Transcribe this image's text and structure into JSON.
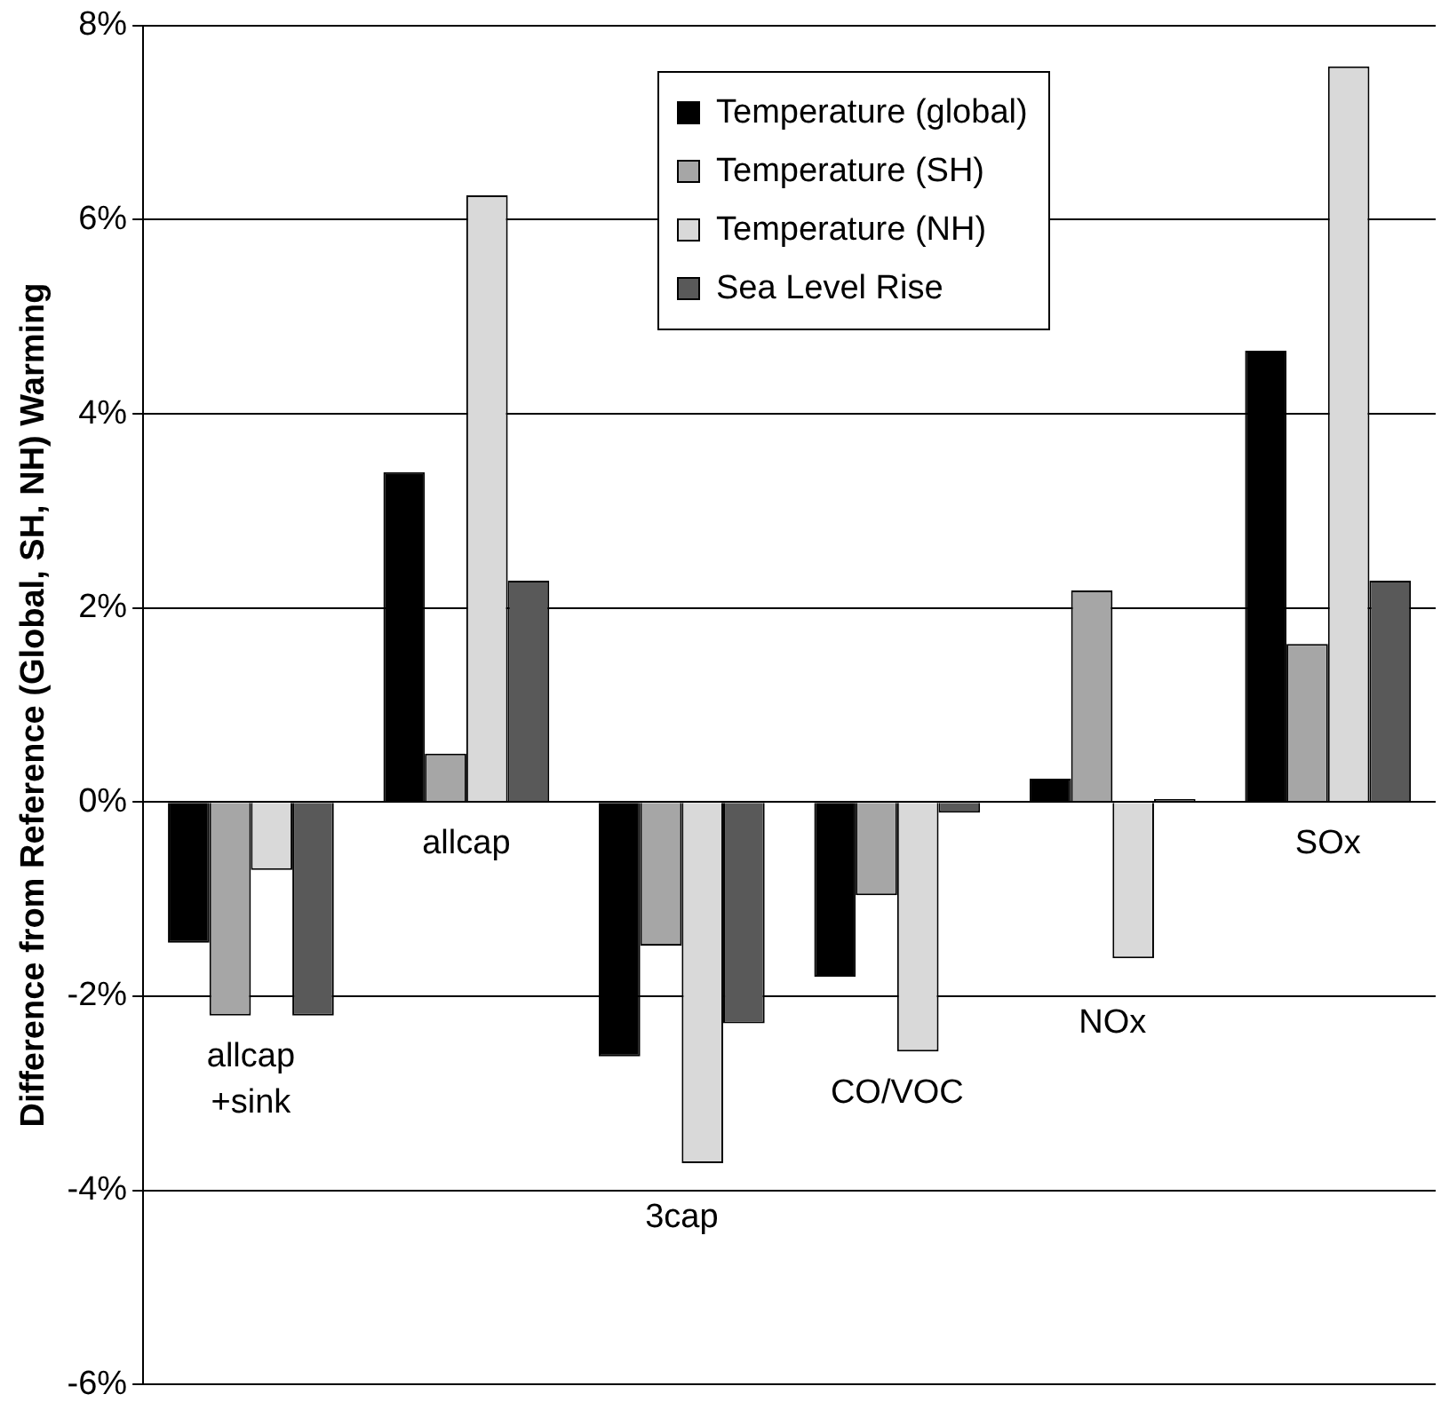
{
  "chart_data": {
    "type": "bar",
    "ylabel": "Difference from Reference (Global, SH, NH) Warming",
    "categories": [
      "allcap\n+sink",
      "allcap",
      "3cap",
      "CO/VOC",
      "NOx",
      "SOx"
    ],
    "series": [
      {
        "name": "Temperature (global)",
        "color": "#000000",
        "values": [
          -1.45,
          3.4,
          -2.62,
          -1.8,
          0.24,
          4.65
        ]
      },
      {
        "name": "Temperature (SH)",
        "color": "#a6a6a6",
        "values": [
          -2.2,
          0.5,
          -1.48,
          -0.96,
          2.18,
          1.63
        ]
      },
      {
        "name": "Temperature (NH)",
        "color": "#d9d9d9",
        "values": [
          -0.7,
          6.25,
          -3.72,
          -2.57,
          -1.61,
          7.58
        ]
      },
      {
        "name": "Sea Level Rise",
        "color": "#595959",
        "values": [
          -2.2,
          2.28,
          -2.28,
          -0.11,
          0.03,
          2.28
        ]
      }
    ],
    "ylim": [
      -6,
      8
    ],
    "yticks": [
      {
        "value": -6,
        "label": "-6%"
      },
      {
        "value": -4,
        "label": "-4%"
      },
      {
        "value": -2,
        "label": "-2%"
      },
      {
        "value": 0,
        "label": "0%"
      },
      {
        "value": 2,
        "label": "2%"
      },
      {
        "value": 4,
        "label": "4%"
      },
      {
        "value": 6,
        "label": "6%"
      },
      {
        "value": 8,
        "label": "8%"
      }
    ],
    "grid": "y",
    "legend": "top"
  }
}
